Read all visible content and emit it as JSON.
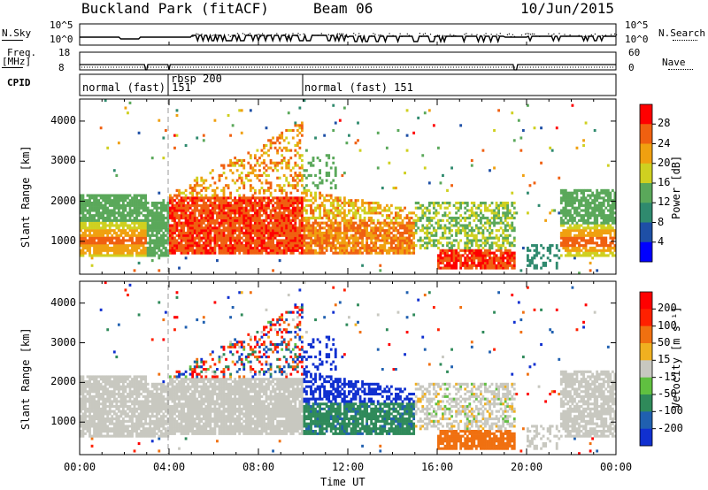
{
  "header": {
    "station": "Buckland Park (fitACF)",
    "beam": "Beam 06",
    "date": "10/Jun/2015"
  },
  "side_labels": {
    "nsky": "N.Sky",
    "nsearch": "N.Search",
    "freq": "Freq.",
    "freq_unit": "[MHz]",
    "nave": "Nave",
    "cpid": "CPID"
  },
  "noise_axis": {
    "left": [
      "10^5",
      "10^0"
    ],
    "right": [
      "10^5",
      "10^0"
    ]
  },
  "freq_axis": {
    "left": [
      "18",
      "8"
    ],
    "right": [
      "60",
      "0"
    ]
  },
  "cpid_segments": [
    {
      "label": "normal (fast) 151",
      "start": 0.0,
      "end": 4.0
    },
    {
      "label": "rbsp 200",
      "start": 4.0,
      "end": 10.0
    },
    {
      "label": "normal (fast) 151",
      "start": 10.0,
      "end": 24.0
    }
  ],
  "chart_data": [
    {
      "type": "heatmap",
      "title": "",
      "ylabel": "Slant Range [km]",
      "xlabel": "",
      "ylim": [
        180,
        4550
      ],
      "xlim": [
        0,
        24
      ],
      "yticks": [
        "1000",
        "2000",
        "3000",
        "4000"
      ],
      "colorbar": {
        "label": "Power [dB]",
        "ticks": [
          "28",
          "24",
          "20",
          "16",
          "12",
          "8",
          "4"
        ],
        "colors": [
          "#0000ff",
          "#1e4fa6",
          "#2f8a6e",
          "#5aa85a",
          "#cfd020",
          "#f0a010",
          "#f06010",
          "#ff0000"
        ],
        "range": [
          0,
          32
        ]
      }
    },
    {
      "type": "heatmap",
      "title": "",
      "ylabel": "Slant Range [km]",
      "xlabel": "Time UT",
      "ylim": [
        180,
        4550
      ],
      "xlim": [
        0,
        24
      ],
      "yticks": [
        "1000",
        "2000",
        "3000",
        "4000"
      ],
      "xticks": [
        "00:00",
        "04:00",
        "08:00",
        "12:00",
        "16:00",
        "20:00",
        "00:00"
      ],
      "colorbar": {
        "label": "Velocity [m s⁻¹]",
        "ticks": [
          "200",
          "100",
          "50",
          "15",
          "-15",
          "-50",
          "-100",
          "-200"
        ],
        "colors": [
          "#1030d0",
          "#2060b0",
          "#2f8a5a",
          "#60c040",
          "#c8c8c0",
          "#f0b020",
          "#f07010",
          "#ff2000",
          "#ff0000"
        ],
        "range": [
          -250,
          250
        ]
      }
    }
  ]
}
